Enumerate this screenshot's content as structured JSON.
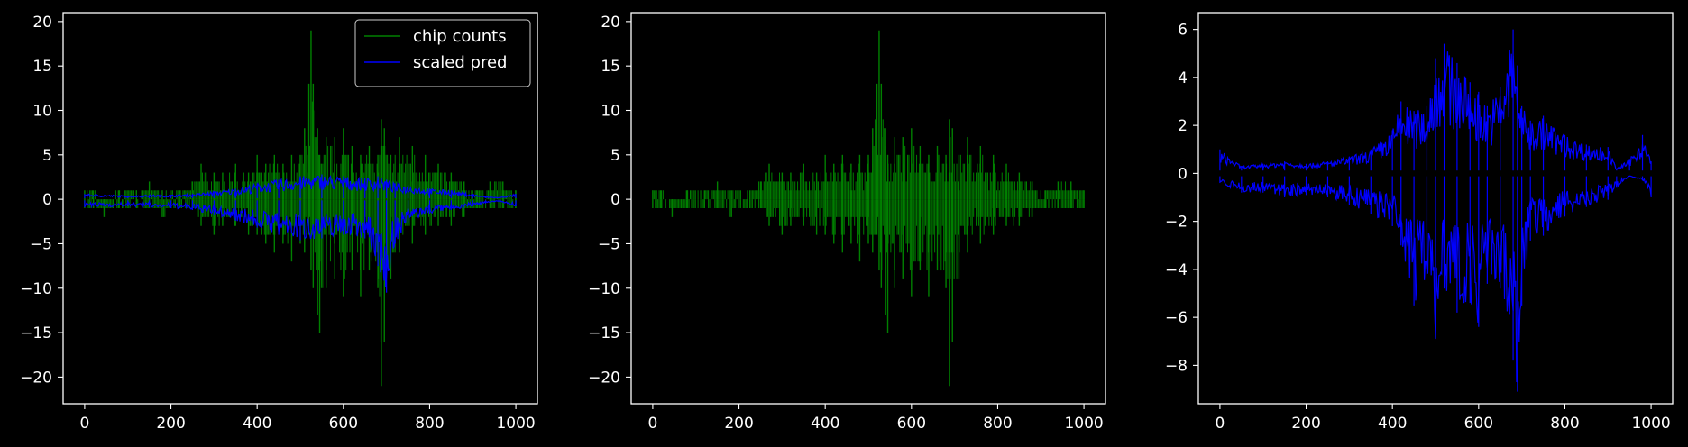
{
  "chart_data": [
    {
      "type": "line",
      "title": "",
      "xlabel": "",
      "ylabel": "",
      "xlim": [
        -50,
        1050
      ],
      "ylim": [
        -23,
        21
      ],
      "x_ticks": [
        0,
        200,
        400,
        600,
        800,
        1000
      ],
      "x_tick_labels": [
        "0",
        "200",
        "400",
        "600",
        "800",
        "1000"
      ],
      "y_ticks": [
        20,
        15,
        10,
        5,
        0,
        -5,
        -10,
        -15,
        -20
      ],
      "y_tick_labels": [
        "20",
        "15",
        "10",
        "5",
        "0",
        "−5",
        "−10",
        "−15",
        "−20"
      ],
      "grid": false,
      "legend": "top-right",
      "series": [
        {
          "name": "chip counts",
          "color": "#008000",
          "style": "spikes",
          "x": [
            0,
            20,
            45,
            80,
            120,
            150,
            180,
            220,
            250,
            270,
            300,
            320,
            350,
            380,
            400,
            420,
            440,
            460,
            480,
            500,
            510,
            520,
            525,
            530,
            540,
            545,
            560,
            580,
            600,
            620,
            640,
            660,
            680,
            688,
            695,
            710,
            730,
            760,
            790,
            820,
            850,
            880,
            910,
            940,
            970,
            1000
          ],
          "pos": [
            1,
            1,
            0,
            1,
            1,
            2,
            1,
            1,
            2,
            4,
            3,
            3,
            4,
            3,
            5,
            4,
            5,
            4,
            5,
            5,
            8,
            13,
            19,
            13,
            8,
            5,
            7,
            7,
            8,
            6,
            5,
            6,
            5,
            9,
            8,
            5,
            7,
            6,
            5,
            4,
            3,
            2,
            1,
            2,
            2,
            1
          ],
          "neg": [
            -1,
            -1,
            -2,
            -1,
            -1,
            -1,
            -2,
            -1,
            -1,
            -3,
            -4,
            -3,
            -3,
            -4,
            -4,
            -5,
            -6,
            -5,
            -7,
            -5,
            -6,
            -4,
            -8,
            -10,
            -13,
            -15,
            -10,
            -9,
            -11,
            -8,
            -11,
            -8,
            -10,
            -21,
            -16,
            -9,
            -6,
            -5,
            -4,
            -3,
            -3,
            -2,
            -1,
            -1,
            -1,
            -1
          ]
        },
        {
          "name": "scaled pred",
          "color": "#0000ff",
          "style": "band",
          "x": [
            0,
            100,
            150,
            200,
            250,
            300,
            350,
            400,
            450,
            500,
            550,
            600,
            650,
            680,
            700,
            720,
            750,
            800,
            850,
            900,
            930,
            960,
            1000
          ],
          "upper": [
            0.6,
            0.4,
            0.5,
            0.5,
            0.6,
            0.9,
            1.2,
            1.8,
            2.2,
            2.6,
            2.8,
            2.6,
            2.4,
            2.6,
            2.2,
            1.8,
            1.6,
            1.2,
            1.0,
            0.6,
            0.3,
            0.2,
            0.6
          ],
          "lower": [
            -0.9,
            -0.8,
            -0.9,
            -1.0,
            -1.2,
            -1.8,
            -2.4,
            -3.2,
            -4.0,
            -4.6,
            -4.4,
            -4.0,
            -4.4,
            -7.5,
            -10.5,
            -5.0,
            -2.6,
            -1.6,
            -1.2,
            -0.8,
            -0.4,
            -0.2,
            -0.8
          ]
        }
      ]
    },
    {
      "type": "line",
      "title": "",
      "xlabel": "",
      "ylabel": "",
      "xlim": [
        -50,
        1050
      ],
      "ylim": [
        -23,
        21
      ],
      "x_ticks": [
        0,
        200,
        400,
        600,
        800,
        1000
      ],
      "x_tick_labels": [
        "0",
        "200",
        "400",
        "600",
        "800",
        "1000"
      ],
      "y_ticks": [
        20,
        15,
        10,
        5,
        0,
        -5,
        -10,
        -15,
        -20
      ],
      "y_tick_labels": [
        "20",
        "15",
        "10",
        "5",
        "0",
        "−5",
        "−10",
        "−15",
        "−20"
      ],
      "grid": false,
      "series": [
        {
          "color": "#008000",
          "style": "spikes",
          "x": [
            0,
            20,
            45,
            80,
            120,
            150,
            180,
            220,
            250,
            270,
            300,
            320,
            350,
            380,
            400,
            420,
            440,
            460,
            480,
            500,
            510,
            520,
            525,
            530,
            540,
            545,
            560,
            580,
            600,
            620,
            640,
            660,
            680,
            688,
            695,
            710,
            730,
            760,
            790,
            820,
            850,
            880,
            910,
            940,
            970,
            1000
          ],
          "pos": [
            1,
            1,
            0,
            1,
            1,
            2,
            1,
            1,
            2,
            4,
            3,
            3,
            4,
            3,
            5,
            4,
            5,
            4,
            5,
            5,
            8,
            13,
            19,
            13,
            8,
            5,
            7,
            7,
            8,
            6,
            5,
            6,
            5,
            9,
            8,
            5,
            7,
            6,
            5,
            4,
            3,
            2,
            1,
            2,
            2,
            1
          ],
          "neg": [
            -1,
            -1,
            -2,
            -1,
            -1,
            -1,
            -2,
            -1,
            -1,
            -3,
            -4,
            -3,
            -3,
            -4,
            -4,
            -5,
            -6,
            -5,
            -7,
            -5,
            -6,
            -4,
            -8,
            -10,
            -13,
            -15,
            -10,
            -9,
            -11,
            -8,
            -11,
            -8,
            -10,
            -21,
            -16,
            -9,
            -6,
            -5,
            -4,
            -3,
            -3,
            -2,
            -1,
            -1,
            -1,
            -1
          ]
        }
      ]
    },
    {
      "type": "line",
      "title": "",
      "xlabel": "",
      "ylabel": "",
      "xlim": [
        -50,
        1050
      ],
      "ylim": [
        -9.6,
        6.7
      ],
      "x_ticks": [
        0,
        200,
        400,
        600,
        800,
        1000
      ],
      "x_tick_labels": [
        "0",
        "200",
        "400",
        "600",
        "800",
        "1000"
      ],
      "y_ticks": [
        6,
        4,
        2,
        0,
        -2,
        -4,
        -6,
        -8
      ],
      "y_tick_labels": [
        "6",
        "4",
        "2",
        "0",
        "−2",
        "−4",
        "−6",
        "−8"
      ],
      "grid": false,
      "series": [
        {
          "color": "#0000ff",
          "style": "band",
          "x": [
            0,
            50,
            100,
            150,
            200,
            250,
            300,
            350,
            400,
            420,
            450,
            480,
            500,
            520,
            550,
            580,
            600,
            620,
            650,
            680,
            690,
            700,
            720,
            750,
            800,
            850,
            900,
            920,
            950,
            980,
            1000
          ],
          "upper": [
            1.0,
            0.3,
            0.4,
            0.5,
            0.4,
            0.5,
            0.7,
            1.0,
            1.8,
            3.0,
            2.6,
            2.8,
            4.8,
            5.4,
            4.6,
            3.8,
            3.4,
            2.8,
            3.6,
            6.0,
            4.5,
            2.8,
            2.2,
            2.4,
            1.6,
            1.2,
            1.1,
            0.2,
            0.6,
            1.6,
            0.5
          ],
          "lower": [
            -0.4,
            -0.8,
            -0.8,
            -1.0,
            -0.9,
            -1.0,
            -1.3,
            -1.7,
            -2.2,
            -3.0,
            -5.5,
            -4.2,
            -6.9,
            -4.8,
            -5.8,
            -5.4,
            -6.4,
            -4.6,
            -4.8,
            -7.8,
            -9.1,
            -5.5,
            -2.8,
            -2.6,
            -1.8,
            -1.4,
            -1.1,
            -0.6,
            -0.1,
            -0.3,
            -1.0
          ]
        }
      ]
    }
  ]
}
